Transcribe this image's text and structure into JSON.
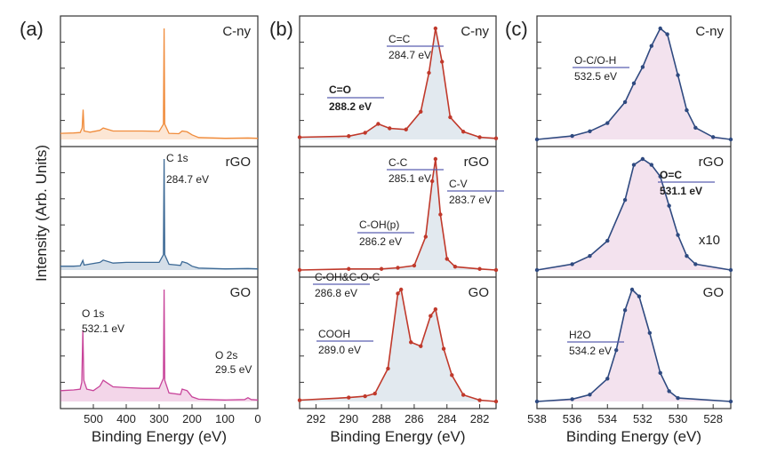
{
  "chart_data": [
    {
      "panel": "(a)",
      "type": "line",
      "xlabel": "Binding Energy (eV)",
      "ylabel": "Intensity (Arb. Units)",
      "xlim": [
        600,
        0
      ],
      "x_ticks": [
        "500",
        "400",
        "300",
        "200",
        "100",
        "0"
      ],
      "series_labels": [
        "C-ny",
        "rGO",
        "GO"
      ],
      "colors": {
        "C-ny": "#f08c3c",
        "rGO": "#3d6a96",
        "GO": "#c8449a"
      },
      "annotations": [
        {
          "name": "C 1s",
          "value": "284.7 eV"
        },
        {
          "name": "O 1s",
          "value": "532.1 eV"
        },
        {
          "name": "O 2s",
          "value": "29.5 eV"
        }
      ],
      "spectra": {
        "C-ny": [
          [
            600,
            0.16
          ],
          [
            560,
            0.17
          ],
          [
            540,
            0.18
          ],
          [
            534,
            0.3
          ],
          [
            531,
            0.78
          ],
          [
            528,
            0.22
          ],
          [
            510,
            0.19
          ],
          [
            480,
            0.24
          ],
          [
            470,
            0.3
          ],
          [
            440,
            0.22
          ],
          [
            400,
            0.22
          ],
          [
            350,
            0.22
          ],
          [
            300,
            0.21
          ],
          [
            287,
            0.4
          ],
          [
            285,
            2.9
          ],
          [
            283,
            0.4
          ],
          [
            270,
            0.16
          ],
          [
            240,
            0.15
          ],
          [
            230,
            0.22
          ],
          [
            215,
            0.2
          ],
          [
            200,
            0.12
          ],
          [
            180,
            0.05
          ],
          [
            100,
            0.03
          ],
          [
            30,
            0.04
          ],
          [
            0,
            0.03
          ]
        ],
        "rGO": [
          [
            600,
            0.1
          ],
          [
            560,
            0.1
          ],
          [
            540,
            0.11
          ],
          [
            532,
            0.25
          ],
          [
            528,
            0.13
          ],
          [
            480,
            0.2
          ],
          [
            470,
            0.26
          ],
          [
            440,
            0.18
          ],
          [
            400,
            0.2
          ],
          [
            350,
            0.2
          ],
          [
            300,
            0.2
          ],
          [
            287,
            0.4
          ],
          [
            285,
            2.9
          ],
          [
            283,
            0.4
          ],
          [
            270,
            0.15
          ],
          [
            235,
            0.12
          ],
          [
            230,
            0.22
          ],
          [
            215,
            0.18
          ],
          [
            200,
            0.1
          ],
          [
            180,
            0.05
          ],
          [
            100,
            0.03
          ],
          [
            30,
            0.04
          ],
          [
            0,
            0.03
          ]
        ],
        "GO": [
          [
            600,
            0.28
          ],
          [
            560,
            0.3
          ],
          [
            540,
            0.32
          ],
          [
            535,
            0.5
          ],
          [
            532,
            1.85
          ],
          [
            529,
            0.55
          ],
          [
            520,
            0.32
          ],
          [
            500,
            0.28
          ],
          [
            480,
            0.4
          ],
          [
            470,
            0.55
          ],
          [
            440,
            0.38
          ],
          [
            400,
            0.36
          ],
          [
            350,
            0.34
          ],
          [
            300,
            0.34
          ],
          [
            287,
            0.6
          ],
          [
            285,
            2.9
          ],
          [
            283,
            0.55
          ],
          [
            270,
            0.22
          ],
          [
            235,
            0.18
          ],
          [
            230,
            0.32
          ],
          [
            215,
            0.28
          ],
          [
            200,
            0.12
          ],
          [
            180,
            0.06
          ],
          [
            100,
            0.04
          ],
          [
            40,
            0.05
          ],
          [
            30,
            0.1
          ],
          [
            20,
            0.05
          ],
          [
            0,
            0.04
          ]
        ]
      }
    },
    {
      "panel": "(b)",
      "type": "line",
      "xlabel": "Binding Energy (eV)",
      "xlim": [
        293,
        281
      ],
      "x_ticks": [
        "292",
        "290",
        "288",
        "286",
        "284",
        "282"
      ],
      "series_labels": [
        "C-ny",
        "rGO",
        "GO"
      ],
      "colors": {
        "fit": "#4a6fa5",
        "data": "#c0392b"
      },
      "annotations": [
        {
          "name": "C=C",
          "value": "284.7 eV"
        },
        {
          "name": "C=O",
          "value": "288.2 eV"
        },
        {
          "name": "C-C",
          "value": "285.1 eV"
        },
        {
          "name": "C-V",
          "value": "283.7 eV"
        },
        {
          "name": "C-OH(p)",
          "value": "286.2 eV"
        },
        {
          "name": "C-OH&C-O-C",
          "value": "286.8 eV"
        },
        {
          "name": "COOH",
          "value": "289.0 eV"
        }
      ],
      "spectra": {
        "C-ny": [
          [
            293,
            0.02
          ],
          [
            290,
            0.03
          ],
          [
            289,
            0.06
          ],
          [
            288.2,
            0.14
          ],
          [
            287.5,
            0.1
          ],
          [
            286.5,
            0.09
          ],
          [
            285.6,
            0.25
          ],
          [
            285.1,
            0.6
          ],
          [
            284.7,
            1.0
          ],
          [
            284.3,
            0.7
          ],
          [
            283.8,
            0.2
          ],
          [
            283,
            0.07
          ],
          [
            282,
            0.02
          ],
          [
            281,
            0.01
          ]
        ],
        "rGO": [
          [
            293,
            0.0
          ],
          [
            290,
            0.01
          ],
          [
            288,
            0.01
          ],
          [
            287,
            0.02
          ],
          [
            286,
            0.04
          ],
          [
            285.3,
            0.3
          ],
          [
            284.9,
            0.8
          ],
          [
            284.7,
            1.0
          ],
          [
            284.4,
            0.5
          ],
          [
            284,
            0.1
          ],
          [
            283.5,
            0.03
          ],
          [
            282,
            0.01
          ],
          [
            281,
            0.0
          ]
        ],
        "GO": [
          [
            293,
            0.01
          ],
          [
            290,
            0.03
          ],
          [
            289,
            0.04
          ],
          [
            288.4,
            0.06
          ],
          [
            287.6,
            0.25
          ],
          [
            287.0,
            0.82
          ],
          [
            286.8,
            0.85
          ],
          [
            286.2,
            0.45
          ],
          [
            285.6,
            0.42
          ],
          [
            285.0,
            0.65
          ],
          [
            284.7,
            0.7
          ],
          [
            284.2,
            0.4
          ],
          [
            283.7,
            0.2
          ],
          [
            283.0,
            0.05
          ],
          [
            282,
            0.01
          ],
          [
            281,
            0.0
          ]
        ]
      }
    },
    {
      "panel": "(c)",
      "type": "line",
      "xlabel": "Binding Energy (eV)",
      "xlim": [
        538,
        527
      ],
      "x_ticks": [
        "538",
        "536",
        "534",
        "532",
        "530",
        "528"
      ],
      "series_labels": [
        "C-ny",
        "rGO",
        "GO"
      ],
      "scale_note": "x10",
      "colors": {
        "fit": "#2f4a80",
        "data": "#3f6fb0"
      },
      "annotations": [
        {
          "name": "O-C/O-H",
          "value": "532.5 eV"
        },
        {
          "name": "O=C",
          "value": "531.1 eV"
        },
        {
          "name": "H2O",
          "value": "534.2 eV"
        }
      ],
      "spectra": {
        "C-ny": [
          [
            538,
            0.0
          ],
          [
            536,
            0.03
          ],
          [
            535,
            0.07
          ],
          [
            534,
            0.14
          ],
          [
            533,
            0.32
          ],
          [
            532.5,
            0.48
          ],
          [
            532,
            0.62
          ],
          [
            531.5,
            0.8
          ],
          [
            531.0,
            0.95
          ],
          [
            530.6,
            0.9
          ],
          [
            530,
            0.55
          ],
          [
            529.5,
            0.25
          ],
          [
            529,
            0.1
          ],
          [
            528,
            0.02
          ],
          [
            527,
            0.0
          ]
        ],
        "rGO": [
          [
            538,
            0.0
          ],
          [
            536,
            0.05
          ],
          [
            535,
            0.12
          ],
          [
            534,
            0.25
          ],
          [
            533,
            0.6
          ],
          [
            532.5,
            0.9
          ],
          [
            532,
            0.95
          ],
          [
            531.5,
            0.9
          ],
          [
            531,
            0.8
          ],
          [
            530.5,
            0.55
          ],
          [
            530,
            0.3
          ],
          [
            529.5,
            0.12
          ],
          [
            529,
            0.05
          ],
          [
            527,
            0.0
          ]
        ],
        "GO": [
          [
            538,
            0.0
          ],
          [
            536,
            0.02
          ],
          [
            535,
            0.06
          ],
          [
            534,
            0.2
          ],
          [
            533.5,
            0.45
          ],
          [
            533,
            0.8
          ],
          [
            532.6,
            0.98
          ],
          [
            532.2,
            0.92
          ],
          [
            531.6,
            0.6
          ],
          [
            531,
            0.25
          ],
          [
            530.5,
            0.09
          ],
          [
            530,
            0.03
          ],
          [
            527,
            0.0
          ]
        ]
      }
    }
  ]
}
